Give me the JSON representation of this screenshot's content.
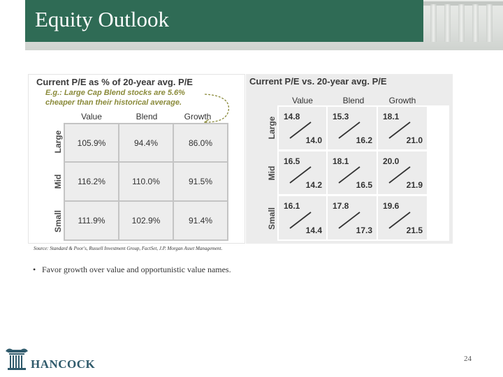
{
  "header": {
    "title": "Equity Outlook"
  },
  "left_panel": {
    "title": "Current P/E as % of 20-year avg. P/E",
    "example_lines": [
      "E.g.: Large Cap Blend stocks are 5.6%",
      "cheaper than their historical average."
    ],
    "columns": [
      "Value",
      "Blend",
      "Growth"
    ],
    "rows": [
      {
        "label": "Large",
        "values": [
          "105.9%",
          "94.4%",
          "86.0%"
        ]
      },
      {
        "label": "Mid",
        "values": [
          "116.2%",
          "110.0%",
          "91.5%"
        ]
      },
      {
        "label": "Small",
        "values": [
          "111.9%",
          "102.9%",
          "91.4%"
        ]
      }
    ]
  },
  "right_panel": {
    "title": "Current P/E vs. 20-year avg. P/E",
    "columns": [
      "Value",
      "Blend",
      "Growth"
    ],
    "rows": [
      {
        "label": "Large",
        "cells": [
          {
            "current": "14.8",
            "average": "14.0"
          },
          {
            "current": "15.3",
            "average": "16.2"
          },
          {
            "current": "18.1",
            "average": "21.0"
          }
        ]
      },
      {
        "label": "Mid",
        "cells": [
          {
            "current": "16.5",
            "average": "14.2"
          },
          {
            "current": "18.1",
            "average": "16.5"
          },
          {
            "current": "20.0",
            "average": "21.9"
          }
        ]
      },
      {
        "label": "Small",
        "cells": [
          {
            "current": "16.1",
            "average": "14.4"
          },
          {
            "current": "17.8",
            "average": "17.3"
          },
          {
            "current": "19.6",
            "average": "21.5"
          }
        ]
      }
    ]
  },
  "source": "Source: Standard & Poor's, Russell Investment Group, FactSet, J.P. Morgan Asset Management.",
  "bullets": [
    "Favor growth over value and opportunistic value names."
  ],
  "bullet_glyph": "•",
  "footer": {
    "logo_text": "HANCOCK",
    "page_number": "24"
  },
  "colors": {
    "header_green": "#2f6b55",
    "example_olive": "#8a8a3a",
    "logo_blue": "#2f5a6b"
  }
}
